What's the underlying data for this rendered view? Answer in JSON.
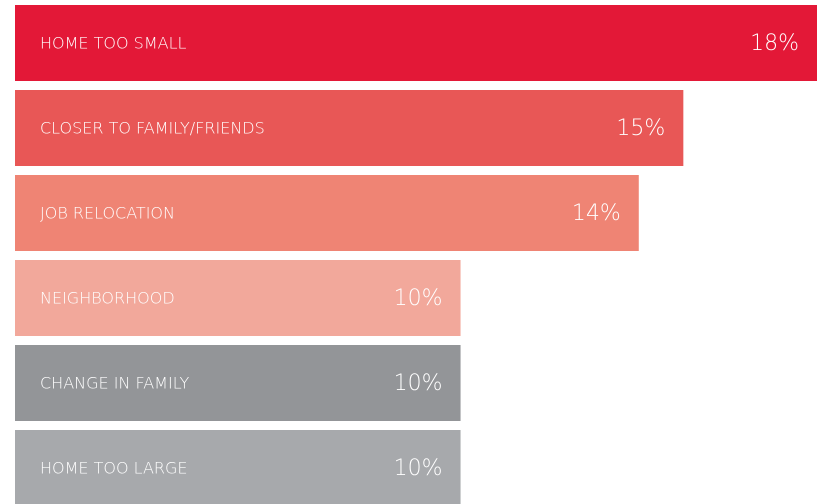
{
  "chart_data": {
    "type": "bar",
    "orientation": "horizontal",
    "categories": [
      "HOME TOO SMALL",
      "CLOSER TO FAMILY/FRIENDS",
      "JOB RELOCATION",
      "NEIGHBORHOOD",
      "CHANGE IN FAMILY",
      "HOME TOO LARGE"
    ],
    "values": [
      18,
      15,
      14,
      10,
      10,
      10
    ],
    "value_labels": [
      "18%",
      "15%",
      "14%",
      "10%",
      "10%",
      "10%"
    ],
    "colors": [
      "#e31837",
      "#e85756",
      "#ef8474",
      "#f2a89b",
      "#939598",
      "#a7a9ac"
    ]
  }
}
